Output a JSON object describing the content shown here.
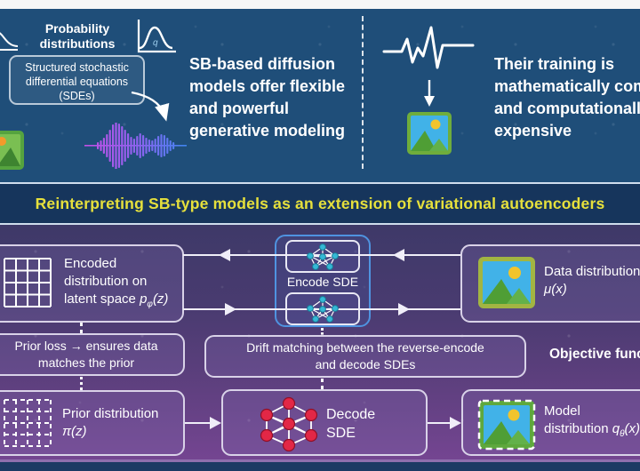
{
  "top": {
    "probability_lines": [
      "Probability",
      "distributions"
    ],
    "gaussian_q": "q",
    "sde_box_lines": [
      "Structured stochastic",
      "differential equations",
      "(SDEs)"
    ],
    "left_claim_lines": [
      "SB-based diffusion",
      "models offer flexible",
      "and powerful",
      "generative modeling"
    ],
    "right_claim_lines": [
      "Their training is",
      "mathematically complex",
      "and computationally",
      "expensive"
    ]
  },
  "banner": {
    "title": "Reinterpreting SB-type models as an extension of variational autoencoders"
  },
  "diagram": {
    "encoded": {
      "l1": "Encoded",
      "l2": "distribution on",
      "l3_prefix": "latent space ",
      "math_main": "p",
      "math_sub": "φ",
      "math_tail": "(z)"
    },
    "encode_sde_label": "Encode SDE",
    "data": {
      "label": "Data distribution",
      "math": "μ(x)"
    },
    "prior_loss_lines": [
      "Prior loss → ensures data",
      "matches the prior"
    ],
    "drift_lines": [
      "Drift matching between the reverse-encode",
      "and decode SDEs"
    ],
    "objective_label": "Objective functions",
    "prior": {
      "label": "Prior distribution",
      "math": "π(z)"
    },
    "decode_lines": [
      "Decode",
      "SDE"
    ],
    "model": {
      "l1": "Model",
      "l2_prefix": "distribution ",
      "math_main": "q",
      "math_sub": "θ",
      "math_tail": "(x)"
    }
  },
  "colors": {
    "top_bg": "#1f4e79",
    "banner_bg": "#16355c",
    "banner_text": "#e6e03c",
    "lower_top": "#3e3968",
    "lower_bottom": "#744591",
    "encode_border": "#4f93e0",
    "nn_teal": "#35b8d6",
    "nn_red": "#e22746",
    "box_border": "#d9d2e8",
    "line": "#f0eef8",
    "bottom_strip": "#1c3a64"
  }
}
